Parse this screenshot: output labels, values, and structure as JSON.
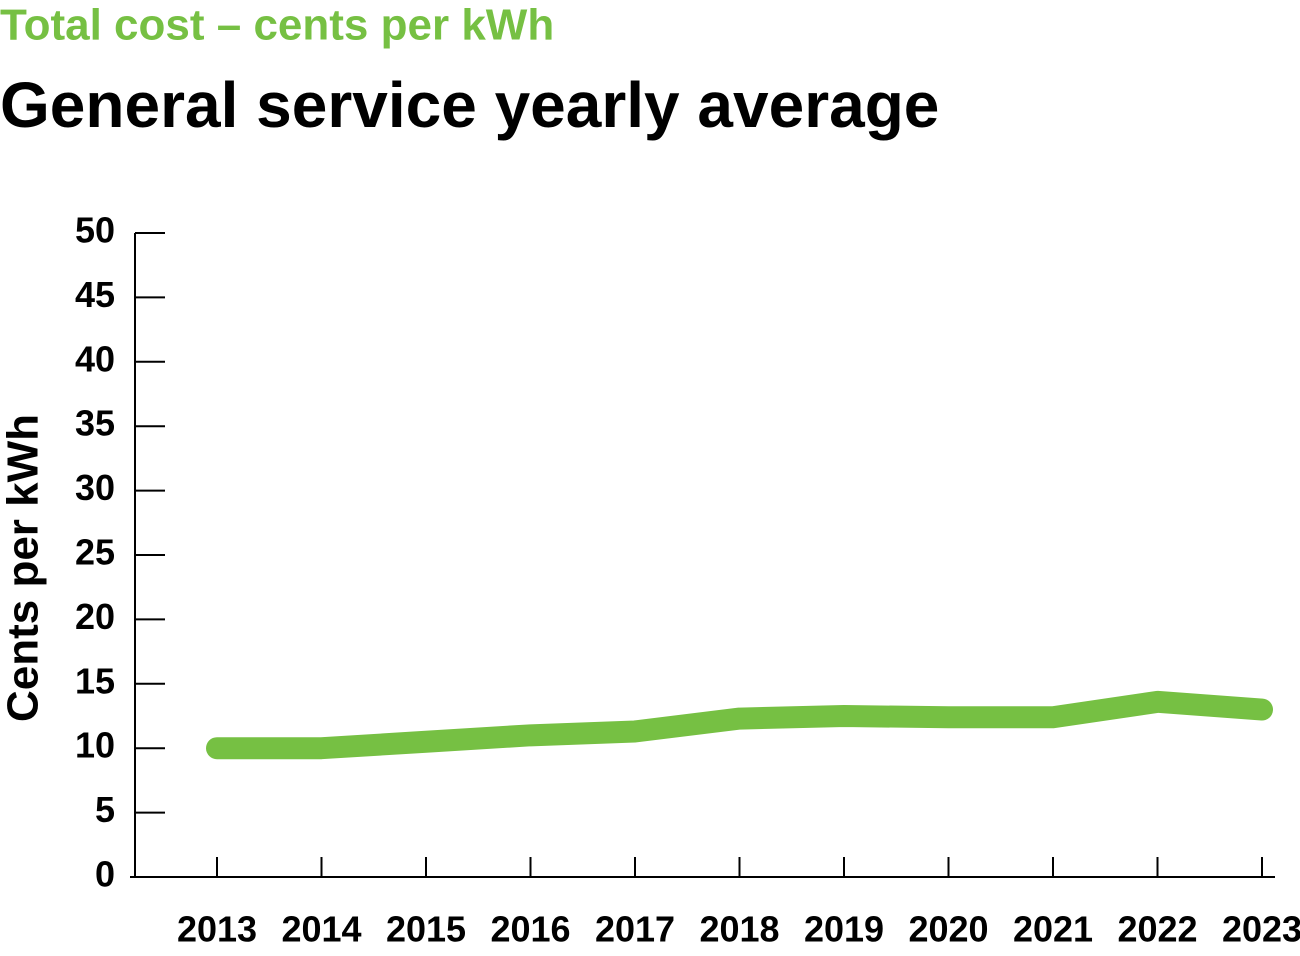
{
  "chart_data": {
    "type": "line",
    "subtitle": "Total cost – cents per kWh",
    "title": "General service yearly average",
    "y_label": "Cents per kWh",
    "categories": [
      "2013",
      "2014",
      "2015",
      "2016",
      "2017",
      "2018",
      "2019",
      "2020",
      "2021",
      "2022",
      "2023"
    ],
    "series": [
      {
        "name": "General service",
        "color": "#76c043",
        "values": [
          10.0,
          10.0,
          10.5,
          11.0,
          11.3,
          12.3,
          12.5,
          12.4,
          12.4,
          13.6,
          13.0
        ]
      }
    ],
    "ylim": [
      0,
      50
    ],
    "yticks": [
      0,
      5,
      10,
      15,
      20,
      25,
      30,
      35,
      40,
      45,
      50
    ],
    "subtitle_color": "#76c043"
  }
}
